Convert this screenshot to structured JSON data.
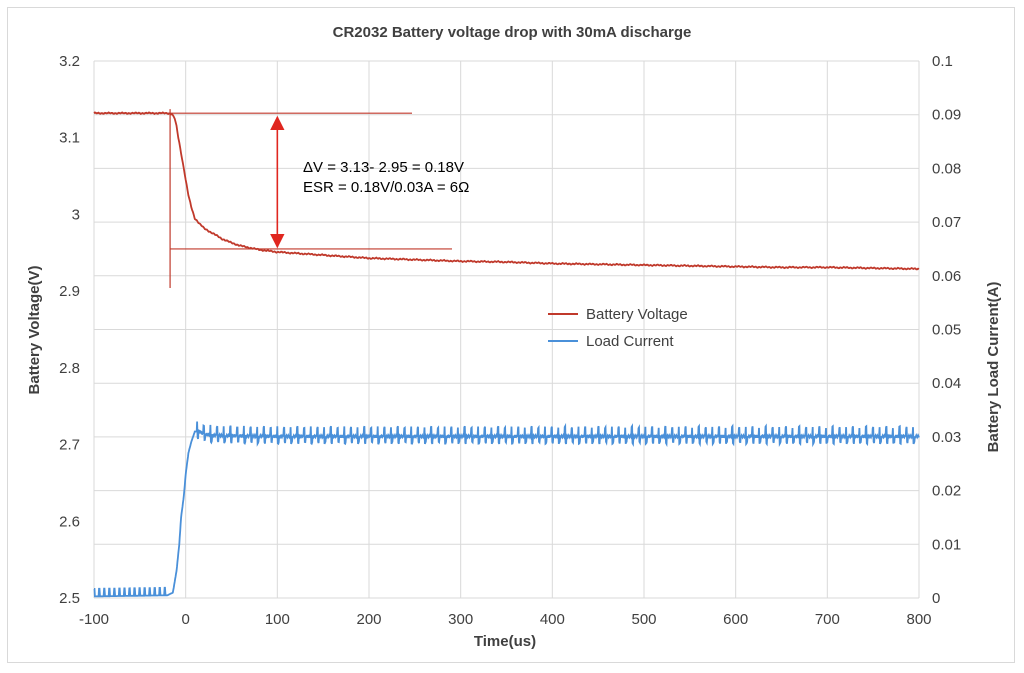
{
  "chart_data": {
    "type": "line",
    "title": "CR2032 Battery voltage drop with 30mA discharge",
    "xlabel": "Time(us)",
    "ylabel": "Battery Voltage(V)",
    "y2label": "Battery Load Current(A)",
    "xlim": [
      -100,
      800
    ],
    "ylim": [
      2.5,
      3.2
    ],
    "y2lim": [
      0,
      0.1
    ],
    "x_ticks": [
      "-100",
      "0",
      "100",
      "200",
      "300",
      "400",
      "500",
      "600",
      "700",
      "800"
    ],
    "y_ticks": [
      "2.5",
      "2.6",
      "2.7",
      "2.8",
      "2.9",
      "3",
      "3.1",
      "3.2"
    ],
    "y2_ticks": [
      "0",
      "0.01",
      "0.02",
      "0.03",
      "0.04",
      "0.05",
      "0.06",
      "0.07",
      "0.08",
      "0.09",
      "0.1"
    ],
    "grid": true,
    "legend_position": "center-right",
    "series": [
      {
        "name": "Battery Voltage",
        "axis": "left",
        "color": "#c0392b",
        "x": [
          -100,
          -50,
          -20,
          -15,
          -12,
          -10,
          -8,
          -5,
          -2,
          0,
          3,
          6,
          10,
          15,
          20,
          30,
          40,
          50,
          60,
          80,
          100,
          150,
          200,
          250,
          300,
          350,
          400,
          450,
          500,
          550,
          600,
          650,
          700,
          750,
          800
        ],
        "y": [
          3.132,
          3.132,
          3.132,
          3.131,
          3.125,
          3.115,
          3.1,
          3.08,
          3.06,
          3.045,
          3.025,
          3.01,
          2.995,
          2.988,
          2.982,
          2.975,
          2.968,
          2.963,
          2.959,
          2.954,
          2.951,
          2.947,
          2.943,
          2.941,
          2.939,
          2.938,
          2.936,
          2.935,
          2.934,
          2.933,
          2.932,
          2.931,
          2.931,
          2.93,
          2.929
        ]
      },
      {
        "name": "Load Current",
        "axis": "right",
        "color": "#4a90d9",
        "x": [
          -100,
          -20,
          -14,
          -10,
          -7,
          -5,
          -2,
          0,
          3,
          6,
          10,
          15,
          20,
          30,
          50,
          100,
          200,
          300,
          400,
          500,
          600,
          700,
          800
        ],
        "y": [
          0.0003,
          0.0005,
          0.001,
          0.005,
          0.01,
          0.015,
          0.019,
          0.023,
          0.027,
          0.029,
          0.031,
          0.031,
          0.0305,
          0.0303,
          0.0302,
          0.0301,
          0.0301,
          0.0301,
          0.0301,
          0.0301,
          0.0301,
          0.0301,
          0.0301
        ]
      }
    ],
    "annotations": [
      "ΔV = 3.13- 2.95 = 0.18V",
      "ESR = 0.18V/0.03A = 6Ω"
    ],
    "reference_lines": {
      "upper_v": 3.132,
      "lower_v": 2.955,
      "arrow_x": 100,
      "vertical_x": -17
    }
  }
}
